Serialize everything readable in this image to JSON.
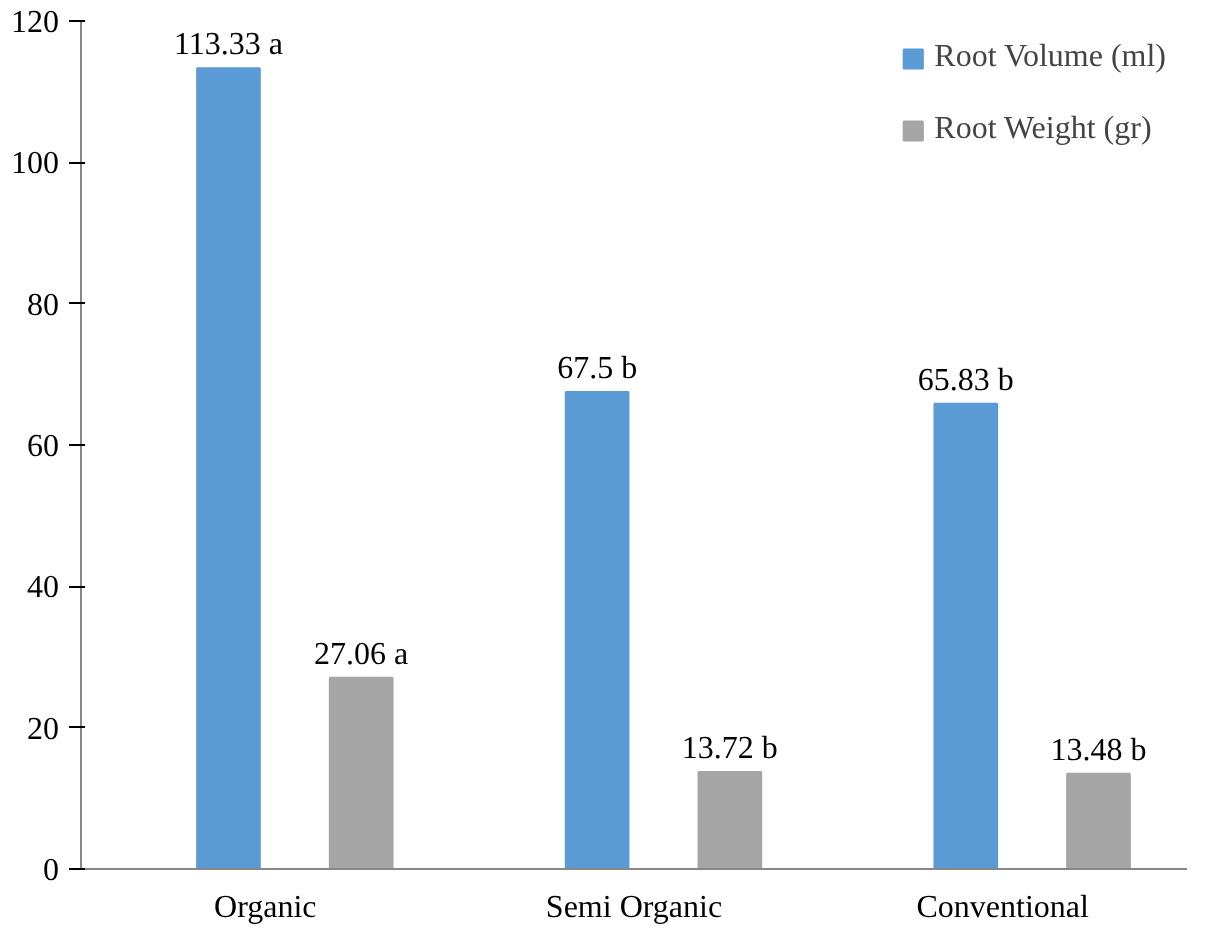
{
  "chart_data": {
    "type": "bar",
    "categories": [
      "Organic",
      "Semi Organic",
      "Conventional"
    ],
    "series": [
      {
        "name": "Root Volume (ml)",
        "color": "#5b9bd5",
        "values": [
          113.33,
          67.5,
          65.83
        ],
        "value_labels": [
          "113.33 a",
          "67.5 b",
          "65.83 b"
        ]
      },
      {
        "name": "Root Weight (gr)",
        "color": "#a5a5a5",
        "values": [
          27.06,
          13.72,
          13.48
        ],
        "value_labels": [
          "27.06 a",
          "13.72 b",
          "13.48 b"
        ]
      }
    ],
    "ylim": [
      0,
      120
    ],
    "yticks": [
      0,
      20,
      40,
      60,
      80,
      100,
      120
    ],
    "grid": false,
    "legend": "top right"
  }
}
